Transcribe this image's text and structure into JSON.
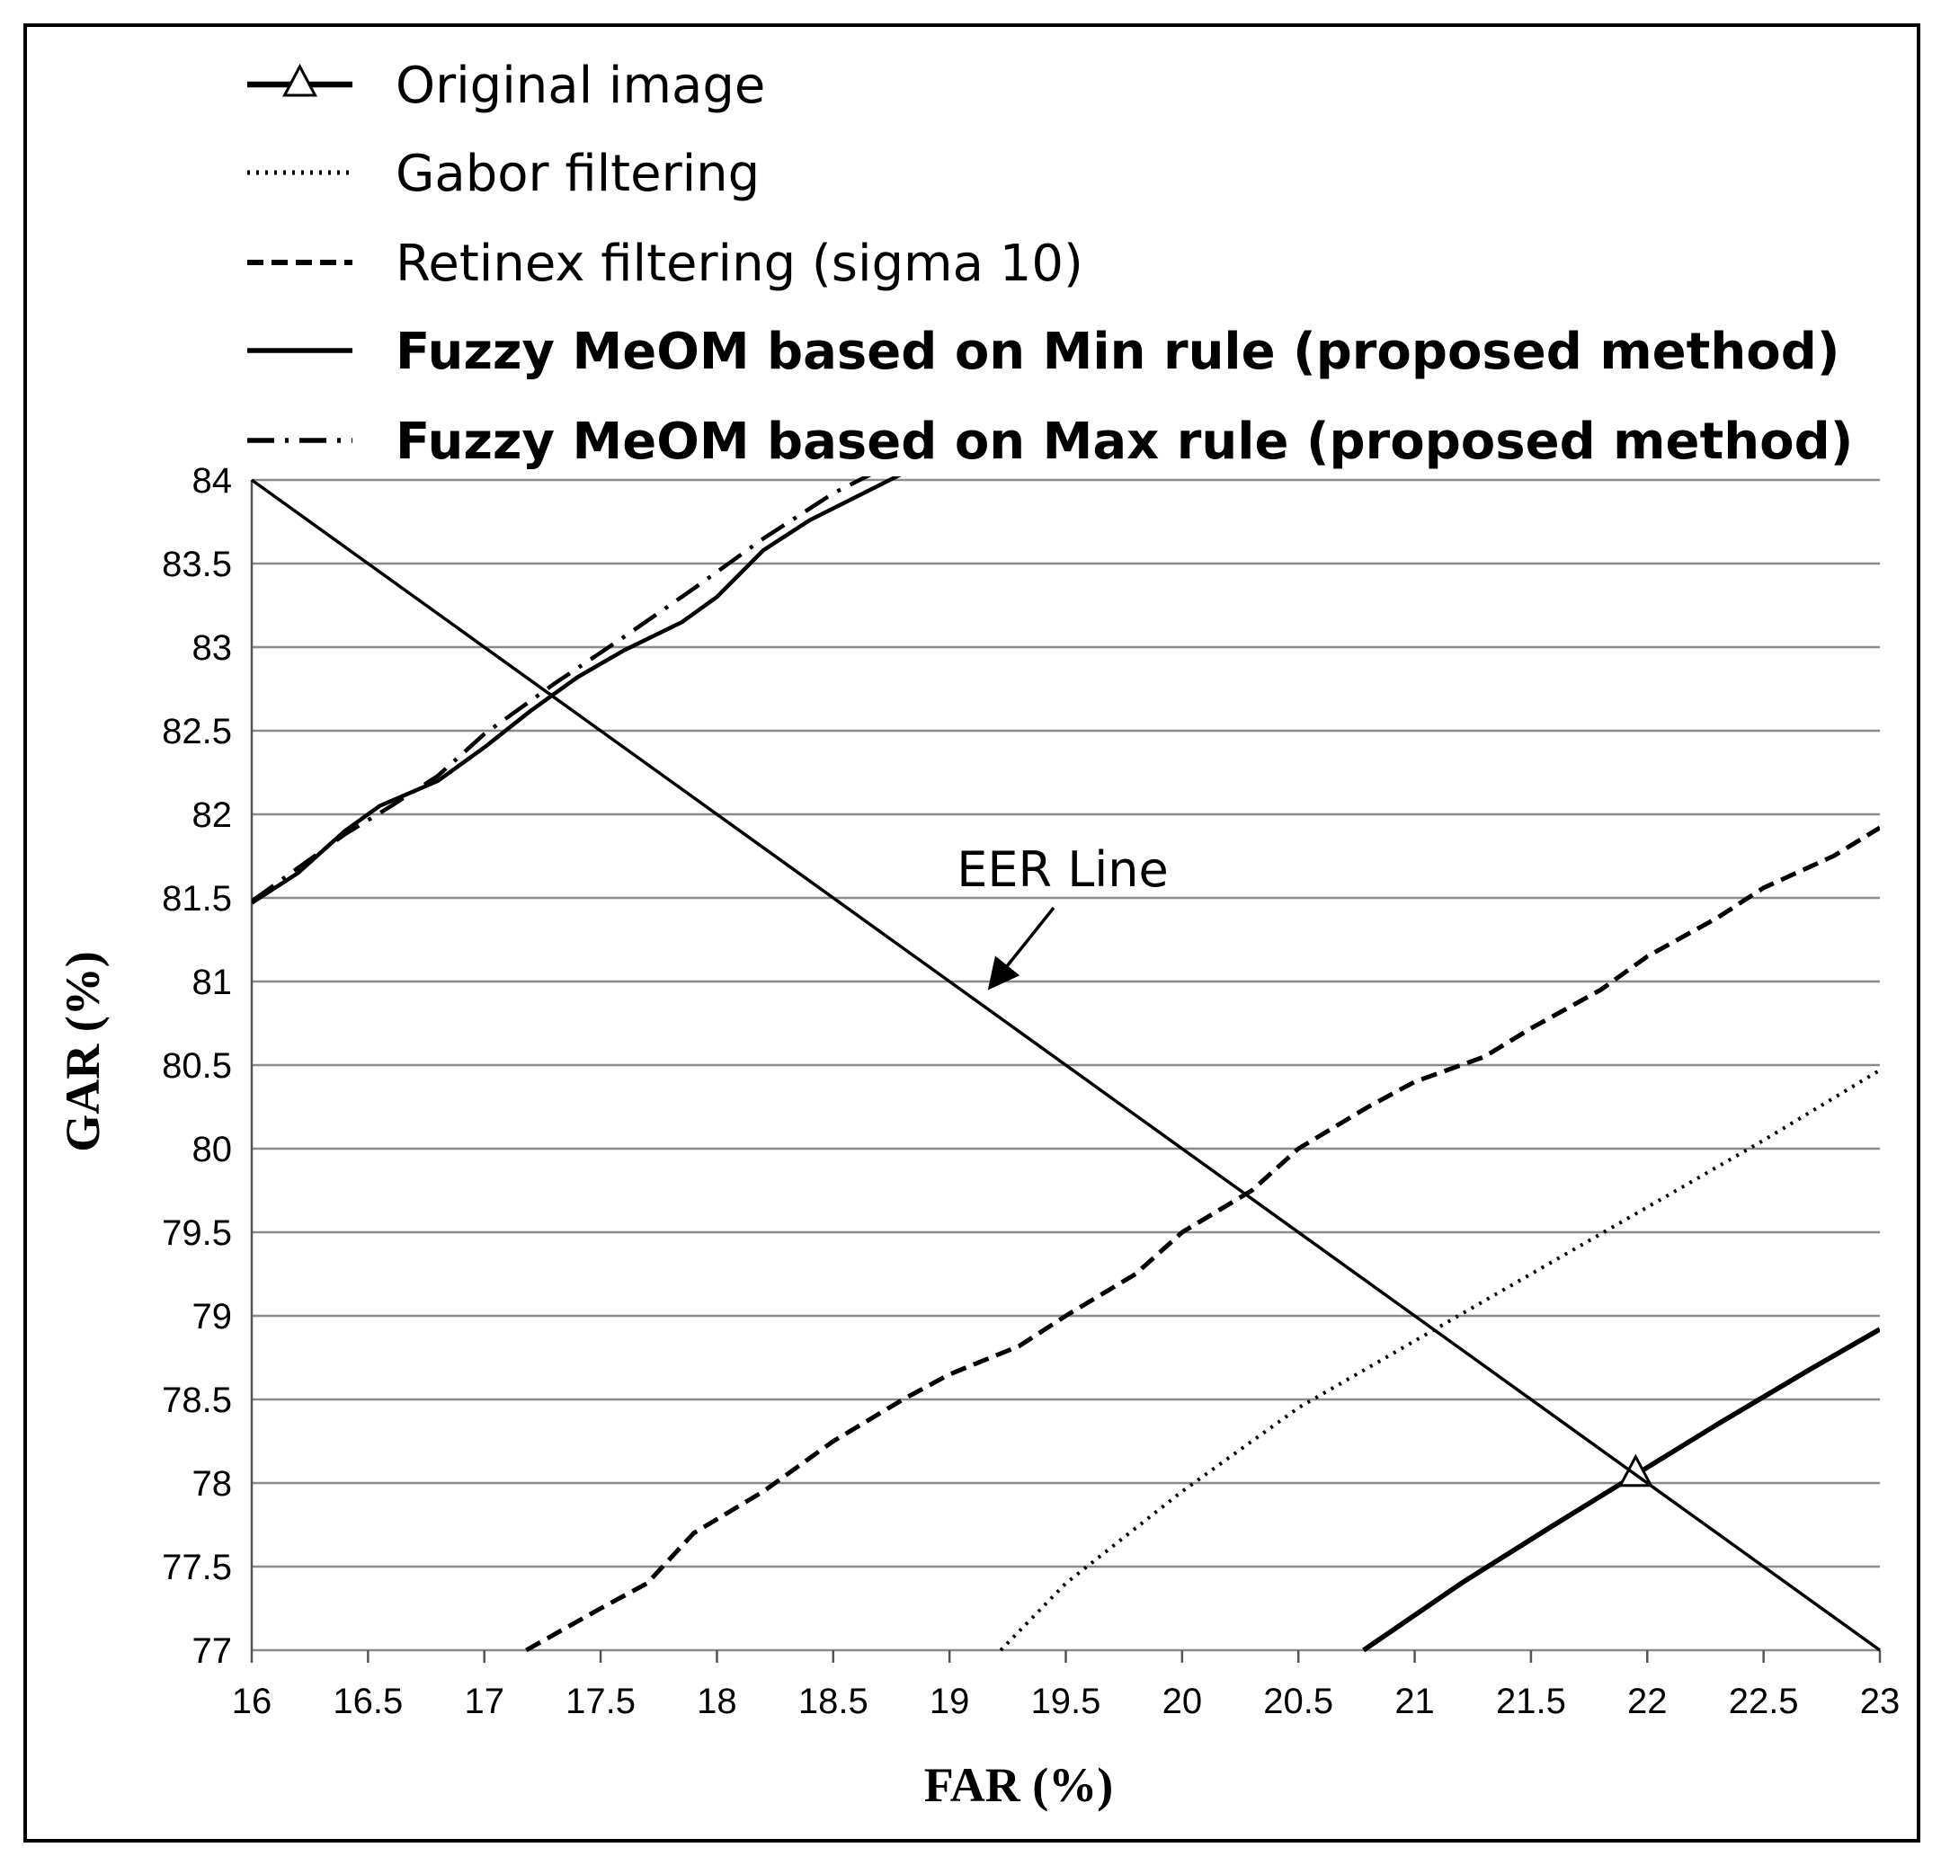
{
  "chart_data": {
    "type": "line",
    "title": "",
    "xlabel": "FAR (%)",
    "ylabel": "GAR (%)",
    "xlim": [
      16,
      23
    ],
    "ylim": [
      77,
      84
    ],
    "x_ticks": [
      "16",
      "16.5",
      "17",
      "17.5",
      "18",
      "18.5",
      "19",
      "19.5",
      "20",
      "20.5",
      "21",
      "21.5",
      "22",
      "22.5",
      "23"
    ],
    "y_ticks": [
      "84",
      "83.5",
      "83",
      "82.5",
      "82",
      "81.5",
      "81",
      "80.5",
      "80",
      "79.5",
      "79",
      "78.5",
      "78",
      "77.5",
      "77"
    ],
    "grid": "horizontal",
    "legend_position": "top-left",
    "series": [
      {
        "name": "Original image",
        "style": "solid-thick-triangle",
        "x": [
          20.78,
          21.2,
          21.6,
          21.95,
          22.3,
          22.7,
          23.0
        ],
        "y": [
          77.0,
          77.4,
          77.75,
          78.05,
          78.35,
          78.68,
          78.92
        ]
      },
      {
        "name": "Gabor filtering",
        "style": "dotted",
        "x": [
          19.22,
          19.5,
          20.0,
          20.5,
          21.0,
          21.5,
          22.0,
          22.5,
          23.0
        ],
        "y": [
          77.0,
          77.4,
          77.95,
          78.45,
          78.85,
          79.25,
          79.65,
          80.05,
          80.47
        ]
      },
      {
        "name": "Retinex filtering (sigma 10)",
        "style": "dashed",
        "x": [
          17.18,
          17.5,
          17.7,
          17.9,
          18.2,
          18.5,
          18.8,
          19.0,
          19.3,
          19.5,
          19.8,
          20.0,
          20.3,
          20.5,
          20.8,
          21.0,
          21.3,
          21.5,
          21.8,
          22.0,
          22.3,
          22.5,
          22.8,
          23.0
        ],
        "y": [
          77.0,
          77.25,
          77.4,
          77.7,
          77.95,
          78.25,
          78.5,
          78.65,
          78.82,
          79.0,
          79.25,
          79.5,
          79.75,
          80.0,
          80.25,
          80.4,
          80.55,
          80.72,
          80.95,
          81.15,
          81.38,
          81.56,
          81.75,
          81.92
        ]
      },
      {
        "name": "Fuzzy MeOM based on Min rule (proposed method)",
        "style": "solid",
        "x": [
          16.0,
          16.2,
          16.4,
          16.55,
          16.8,
          17.0,
          17.2,
          17.4,
          17.6,
          17.85,
          18.0,
          18.2,
          18.4,
          18.6,
          18.8
        ],
        "y": [
          81.47,
          81.65,
          81.9,
          82.05,
          82.2,
          82.4,
          82.62,
          82.82,
          82.98,
          83.15,
          83.3,
          83.58,
          83.76,
          83.9,
          84.04
        ]
      },
      {
        "name": "Fuzzy MeOM based on Max rule (proposed method)",
        "style": "dash-dot",
        "x": [
          16.0,
          16.2,
          16.4,
          16.6,
          16.8,
          17.0,
          17.3,
          17.6,
          17.9,
          18.2,
          18.5,
          18.7
        ],
        "y": [
          81.48,
          81.68,
          81.88,
          82.05,
          82.23,
          82.48,
          82.78,
          83.06,
          83.35,
          83.65,
          83.92,
          84.06
        ]
      }
    ],
    "eer_line": {
      "x": [
        16,
        23
      ],
      "y": [
        84,
        77
      ]
    },
    "annotations": [
      {
        "text": "EER Line",
        "points_to": {
          "x": 19.15,
          "y": 80.92
        }
      }
    ]
  }
}
